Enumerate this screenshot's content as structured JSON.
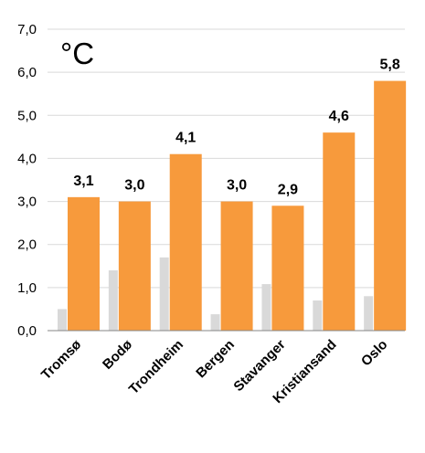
{
  "chart_data": {
    "type": "bar",
    "unit_label": "°C",
    "categories": [
      "Tromsø",
      "Bodø",
      "Trondheim",
      "Bergen",
      "Stavanger",
      "Kristiansand",
      "Oslo"
    ],
    "series": [
      {
        "color": "#d9d9d9",
        "values": [
          0.5,
          1.4,
          1.7,
          0.38,
          1.08,
          0.7,
          0.8
        ]
      },
      {
        "color": "#f79a3c",
        "values": [
          3.1,
          3.0,
          4.1,
          3.0,
          2.9,
          4.6,
          5.8
        ],
        "data_labels": [
          "3,1",
          "3,0",
          "4,1",
          "3,0",
          "2,9",
          "4,6",
          "5,8"
        ]
      }
    ],
    "ylim": [
      0,
      7
    ],
    "yticks": [
      "0,0",
      "1,0",
      "2,0",
      "3,0",
      "4,0",
      "5,0",
      "6,0",
      "7,0"
    ],
    "grid": true,
    "legend": "none"
  }
}
